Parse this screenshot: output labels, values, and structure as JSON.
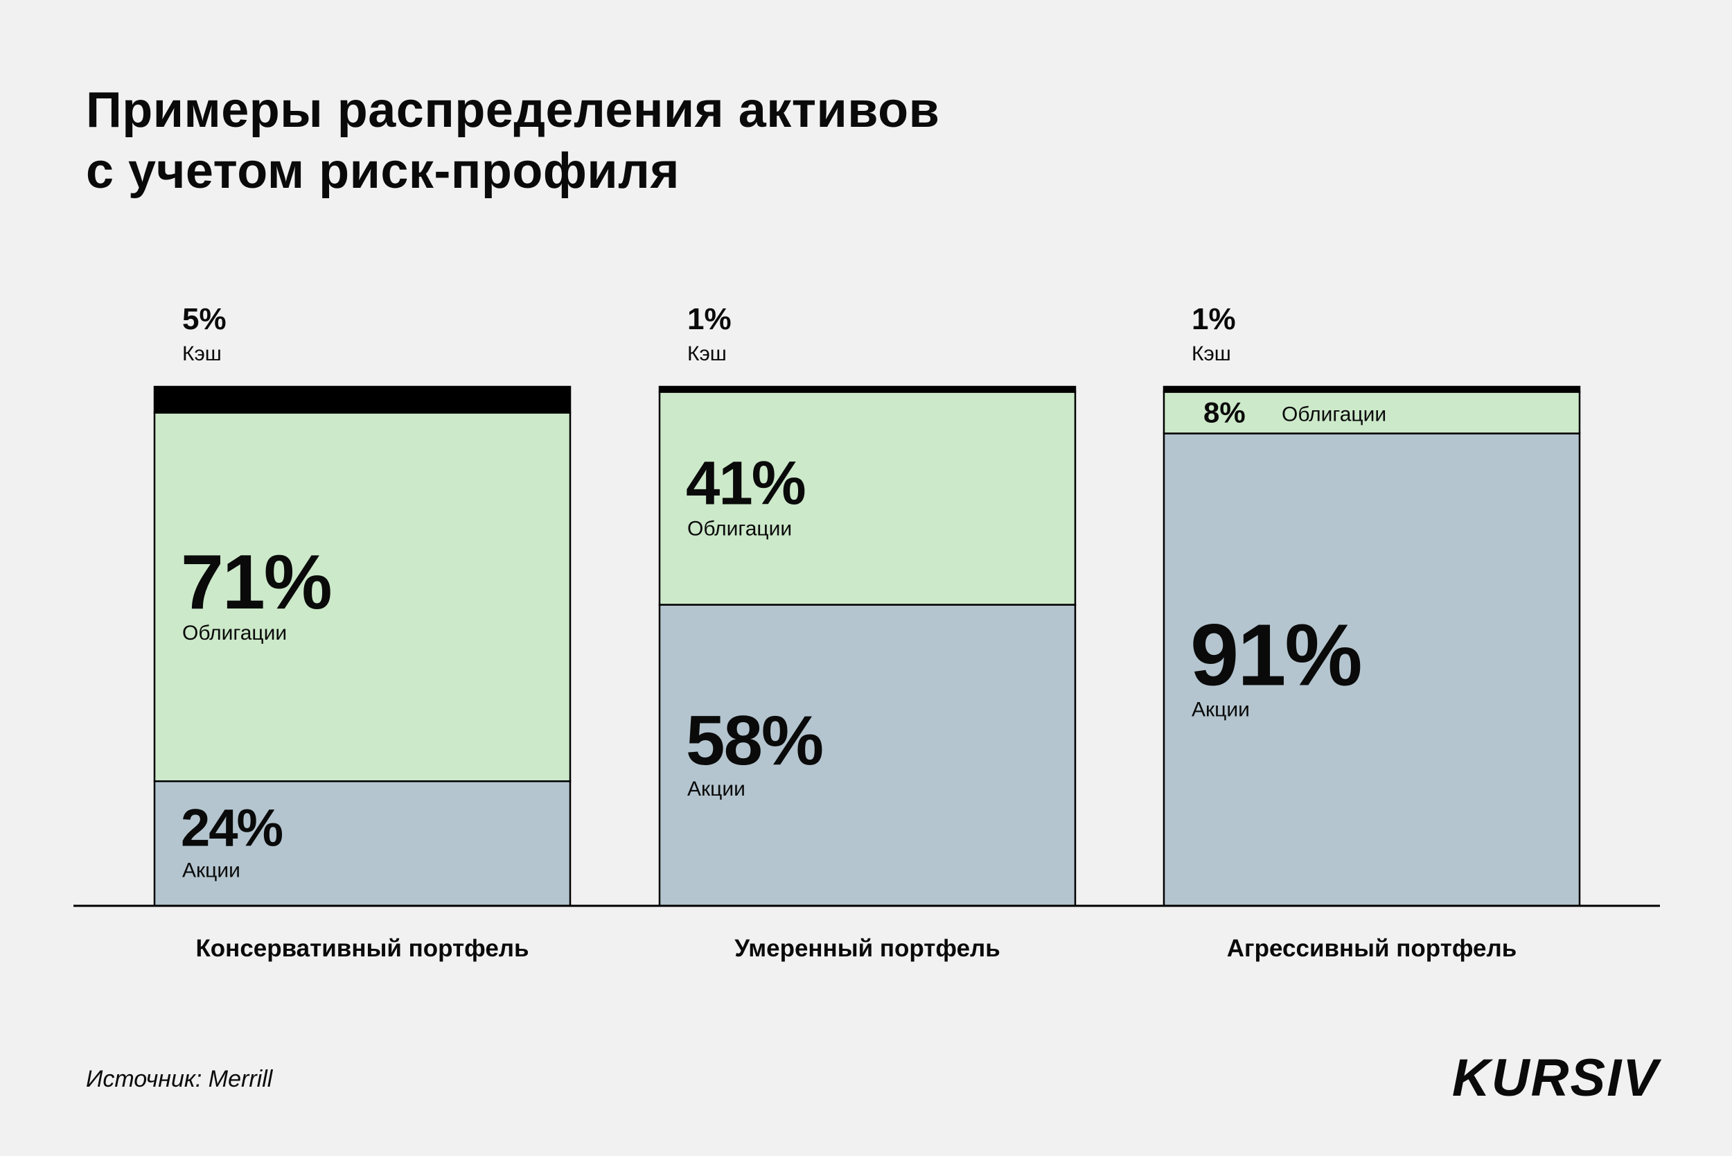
{
  "title_lines": [
    "Примеры распределения активов",
    "с учетом риск-профиля"
  ],
  "source": "Источник: Merrill",
  "logo": "KURSIV",
  "colors": {
    "cash": "#000000",
    "bonds": "#cce9c9",
    "stocks": "#b4c5cf",
    "background": "#f1f1f1"
  },
  "chart_data": {
    "type": "bar",
    "stacked": true,
    "categories": [
      "Консервативный портфель",
      "Умеренный портфель",
      "Агрессивный портфель"
    ],
    "ylim": [
      0,
      100
    ],
    "grid": false,
    "series": [
      {
        "name": "Акции",
        "values": [
          24,
          58,
          91
        ]
      },
      {
        "name": "Облигации",
        "values": [
          71,
          41,
          8
        ]
      },
      {
        "name": "Кэш",
        "values": [
          5,
          1,
          1
        ]
      }
    ],
    "data_labels": [
      [
        "24%",
        "58%",
        "91%"
      ],
      [
        "71%",
        "41%",
        "8%"
      ],
      [
        "5%",
        "1%",
        "1%"
      ]
    ]
  }
}
